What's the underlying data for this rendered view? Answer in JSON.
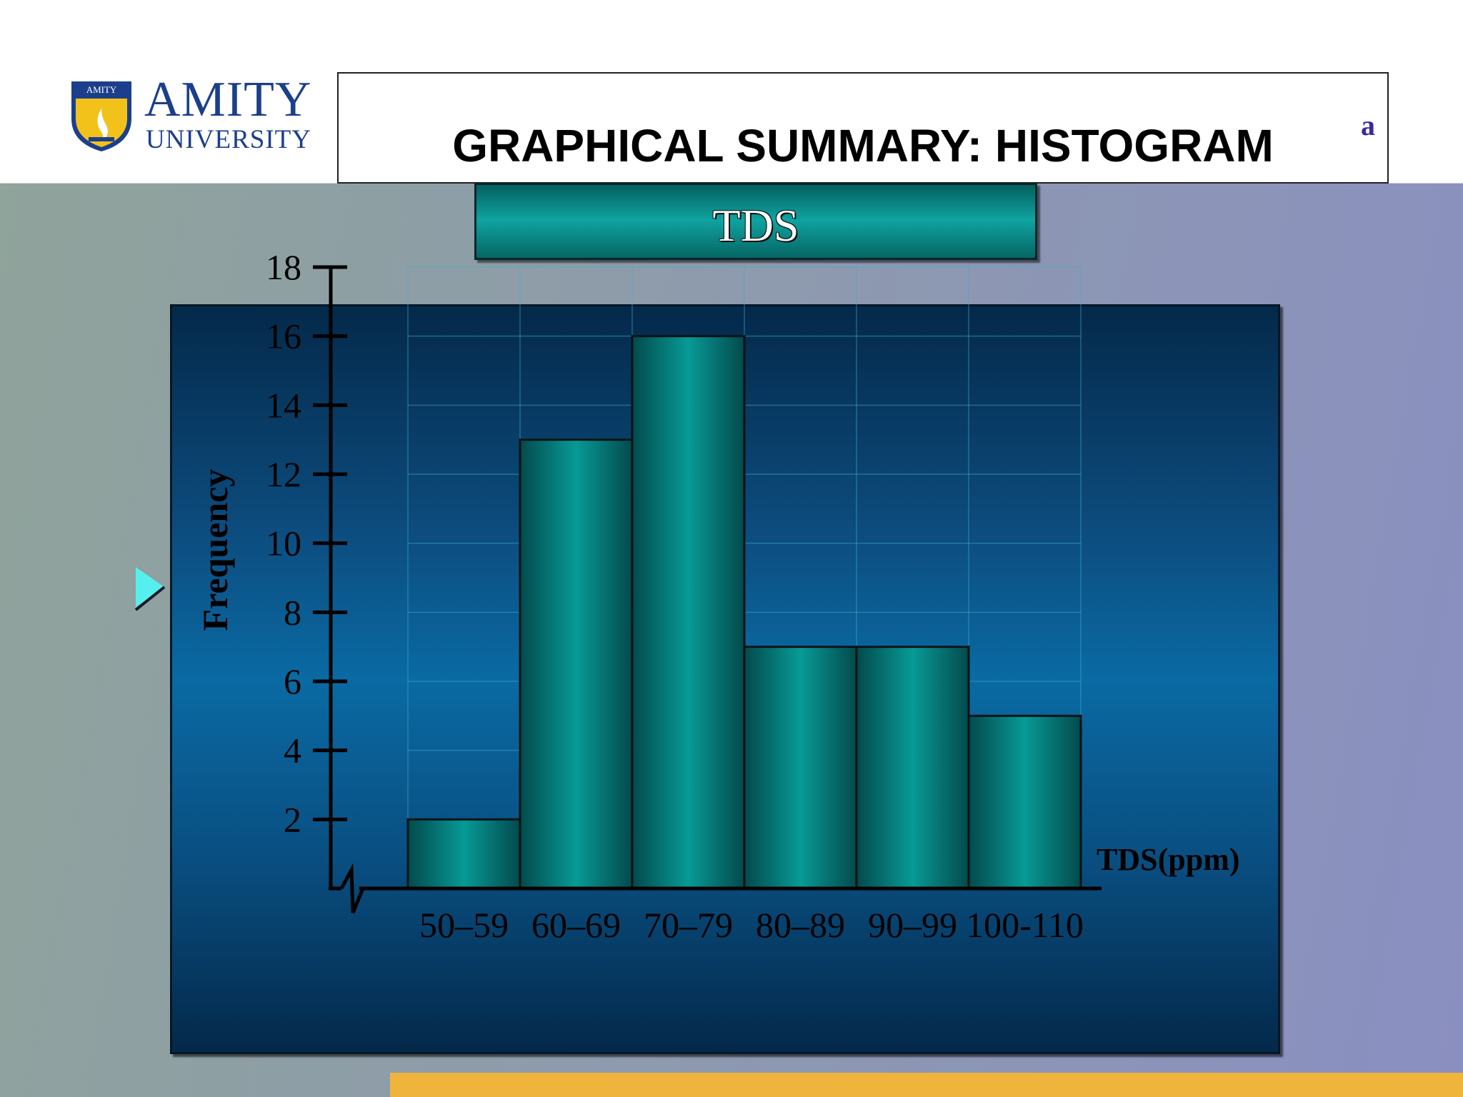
{
  "slide": {
    "logo": {
      "brand": "AMITY",
      "sub": "UNIVERSITY",
      "crest_text": "AMITY"
    },
    "title": "GRAPHICAL SUMMARY: HISTOGRAM",
    "edge_glyph": "a"
  },
  "colors": {
    "bar_teal": "#079a96",
    "panel_navy": "#0a4f82",
    "footer_gold": "#eeb43c",
    "title_blue": "#1b3f8b",
    "bullet_cyan": "#55f0ee"
  },
  "icons": {
    "bullet": "triangle-bullet-icon",
    "axis_break": "axis-break-icon"
  },
  "chart_data": {
    "type": "bar",
    "title": "TDS",
    "xlabel": "TDS(ppm)",
    "ylabel": "Frequency",
    "categories": [
      "50–59",
      "60–69",
      "70–79",
      "80–89",
      "90–99",
      "100-110"
    ],
    "values": [
      2,
      13,
      16,
      7,
      7,
      5
    ],
    "ylim": [
      0,
      18
    ],
    "yticks": [
      2,
      4,
      6,
      8,
      10,
      12,
      14,
      16,
      18
    ],
    "grid": true,
    "legend": "none"
  }
}
